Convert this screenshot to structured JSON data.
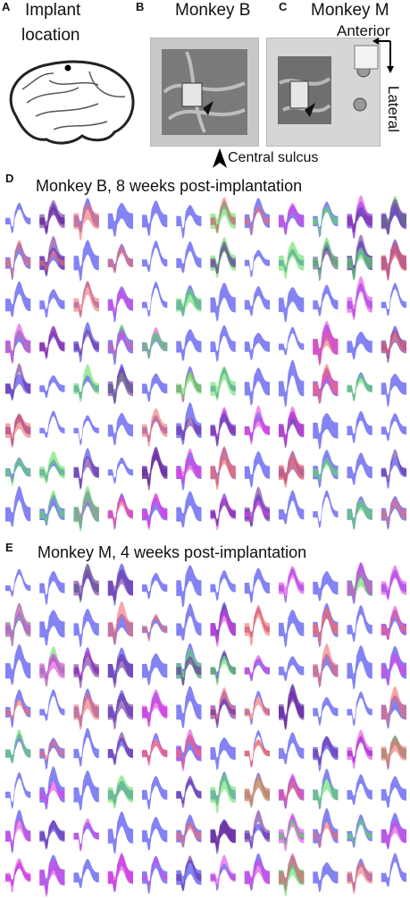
{
  "panelA": {
    "letter": "A",
    "title_line1": "Implant",
    "title_line2": "location"
  },
  "panelB": {
    "letter": "B",
    "title": "Monkey B"
  },
  "panelC": {
    "letter": "C",
    "title": "Monkey M",
    "anterior": "Anterior",
    "lateral": "Lateral"
  },
  "central_sulcus": "Central sulcus",
  "panelD": {
    "letter": "D",
    "title": "Monkey B, 8 weeks post-implantation"
  },
  "panelE": {
    "letter": "E",
    "title": "Monkey M, 4 weeks post-implantation"
  },
  "colors": {
    "blue": "#5a5af0",
    "red": "#f06a6a",
    "green": "#5ee05e",
    "purple": "#6a2a9a",
    "magenta": "#e040e0"
  }
}
